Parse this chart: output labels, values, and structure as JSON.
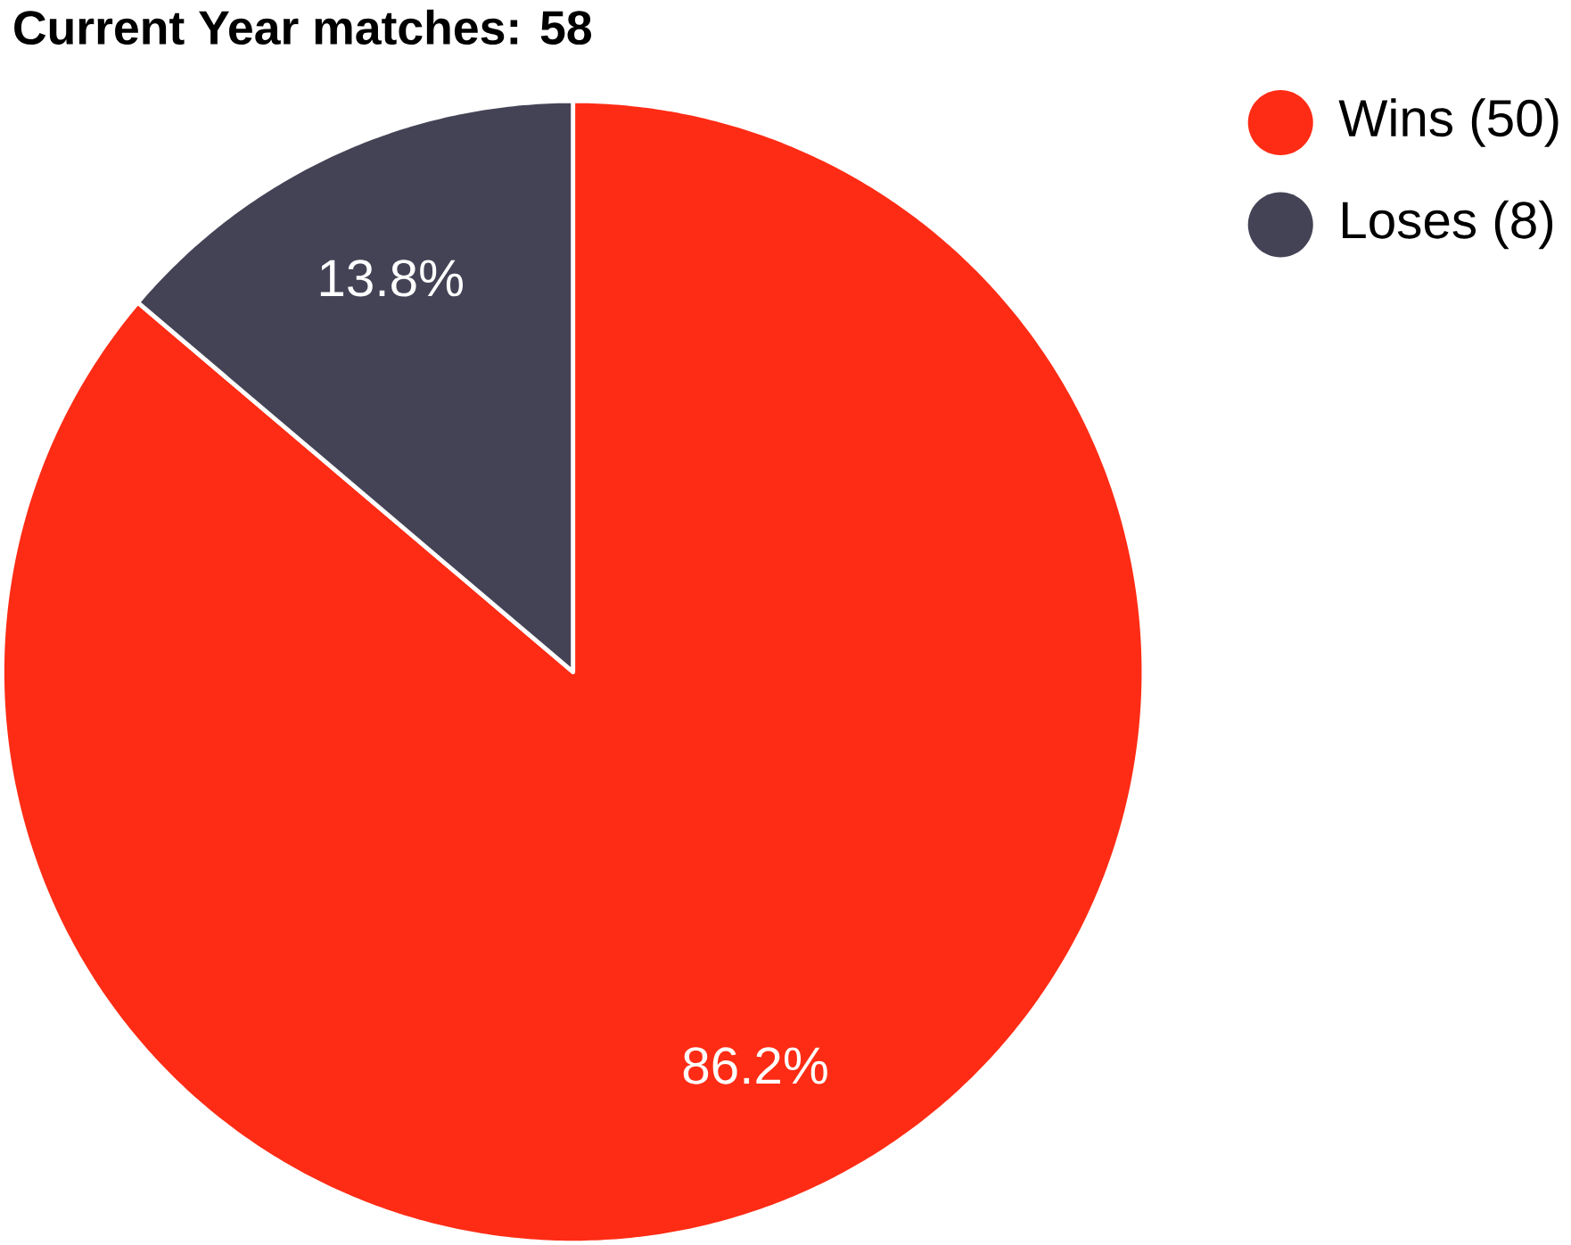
{
  "chart_data": {
    "type": "pie",
    "title": "Current Year matches: 58",
    "categories": [
      "Wins (50)",
      "Loses (8)"
    ],
    "values": [
      86.2,
      13.8
    ],
    "value_labels": [
      "86.2%",
      "13.8%"
    ],
    "colors": [
      "#fe2c15",
      "#444356"
    ],
    "legend": "top right"
  }
}
